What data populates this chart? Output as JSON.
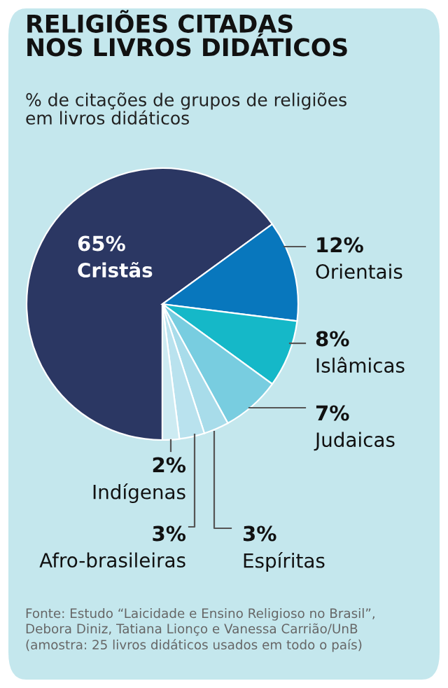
{
  "chart_data": {
    "type": "pie",
    "title": "RELIGIÕES CITADAS\nNOS LIVROS DIDÁTICOS",
    "subtitle": "% de citações de grupos de religiões\nem livros didáticos",
    "categories": [
      "Cristãs",
      "Orientais",
      "Islâmicas",
      "Judaicas",
      "Espíritas",
      "Afro-brasileiras",
      "Indígenas"
    ],
    "values": [
      65,
      12,
      8,
      7,
      3,
      3,
      2
    ],
    "value_labels": [
      "65%",
      "12%",
      "8%",
      "7%",
      "3%",
      "3%",
      "2%"
    ],
    "colors": [
      "#2b3763",
      "#0877bd",
      "#15b8c8",
      "#78cde0",
      "#a8dcea",
      "#b9e2ee",
      "#cdebf2"
    ],
    "annotations": [
      "Fonte: Estudo “Laicidade e Ensino Religioso no Brasil”,\nDebora Diniz, Tatiana Lionço e Vanessa Carrião/UnB\n(amostra: 25 livros didáticos usados em todo o país)"
    ],
    "legend": false
  }
}
